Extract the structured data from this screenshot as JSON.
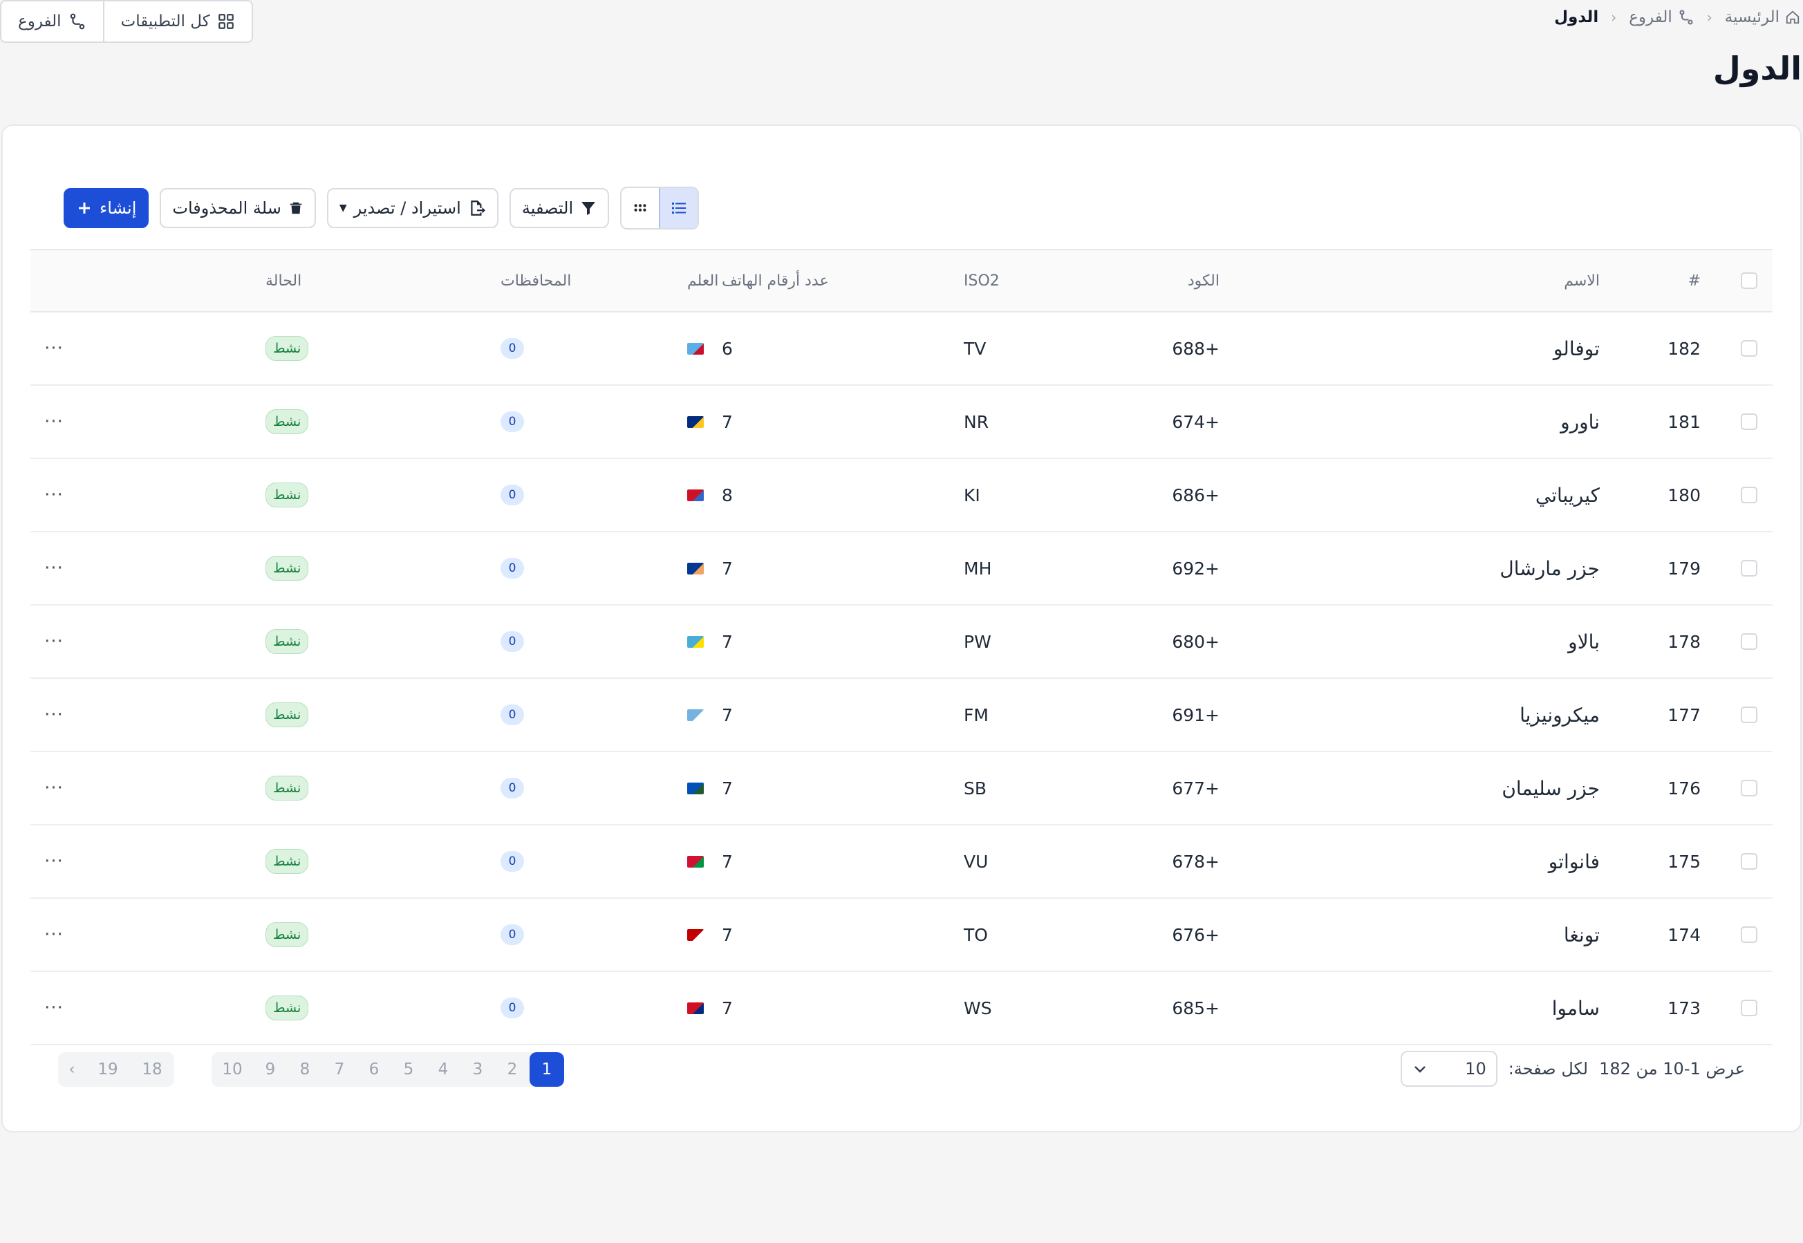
{
  "breadcrumb": {
    "home": "الرئيسية",
    "branches": "الفروع",
    "current": "الدول"
  },
  "top_actions": {
    "all_apps": "كل التطبيقات",
    "branches": "الفروع"
  },
  "page_title": "الدول",
  "toolbar": {
    "create": "إنشاء",
    "trash": "سلة المحذوفات",
    "import_export": "استيراد / تصدير",
    "filter": "التصفية"
  },
  "table": {
    "headers": {
      "index": "#",
      "name": "الاسم",
      "code": "الكود",
      "iso2": "ISO2",
      "phone_digits": "عدد أرقام الهاتف",
      "flag": "العلم",
      "governorates": "المحافظات",
      "status": "الحالة"
    },
    "rows": [
      {
        "id": "182",
        "name": "توفالو",
        "code": "688+",
        "iso2": "TV",
        "phone_digits": "6",
        "flag_colors": [
          "#5ab0e6",
          "#c8102e"
        ],
        "governorates": "0",
        "status": "نشط"
      },
      {
        "id": "181",
        "name": "ناورو",
        "code": "674+",
        "iso2": "NR",
        "phone_digits": "7",
        "flag_colors": [
          "#002b7f",
          "#ffc61e"
        ],
        "governorates": "0",
        "status": "نشط"
      },
      {
        "id": "180",
        "name": "كيريباتي",
        "code": "686+",
        "iso2": "KI",
        "phone_digits": "8",
        "flag_colors": [
          "#ce1126",
          "#3366cc"
        ],
        "governorates": "0",
        "status": "نشط"
      },
      {
        "id": "179",
        "name": "جزر مارشال",
        "code": "692+",
        "iso2": "MH",
        "phone_digits": "7",
        "flag_colors": [
          "#003893",
          "#f4a261"
        ],
        "governorates": "0",
        "status": "نشط"
      },
      {
        "id": "178",
        "name": "بالاو",
        "code": "680+",
        "iso2": "PW",
        "phone_digits": "7",
        "flag_colors": [
          "#4aadd6",
          "#ffde00"
        ],
        "governorates": "0",
        "status": "نشط"
      },
      {
        "id": "177",
        "name": "ميكرونيزيا",
        "code": "691+",
        "iso2": "FM",
        "phone_digits": "7",
        "flag_colors": [
          "#75b2dd",
          "#ffffff"
        ],
        "governorates": "0",
        "status": "نشط"
      },
      {
        "id": "176",
        "name": "جزر سليمان",
        "code": "677+",
        "iso2": "SB",
        "phone_digits": "7",
        "flag_colors": [
          "#0051ba",
          "#215b33"
        ],
        "governorates": "0",
        "status": "نشط"
      },
      {
        "id": "175",
        "name": "فانواتو",
        "code": "678+",
        "iso2": "VU",
        "phone_digits": "7",
        "flag_colors": [
          "#d21034",
          "#009543"
        ],
        "governorates": "0",
        "status": "نشط"
      },
      {
        "id": "174",
        "name": "تونغا",
        "code": "676+",
        "iso2": "TO",
        "phone_digits": "7",
        "flag_colors": [
          "#c10000",
          "#ffffff"
        ],
        "governorates": "0",
        "status": "نشط"
      },
      {
        "id": "173",
        "name": "ساموا",
        "code": "685+",
        "iso2": "WS",
        "phone_digits": "7",
        "flag_colors": [
          "#ce1126",
          "#002b7f"
        ],
        "governorates": "0",
        "status": "نشط"
      }
    ]
  },
  "footer": {
    "showing_prefix": "عرض",
    "range": "1-10",
    "of": "من",
    "total": "182",
    "per_page_label": "لكل صفحة:",
    "per_page_value": "10"
  },
  "pagination": {
    "pages": [
      "1",
      "2",
      "3",
      "4",
      "5",
      "6",
      "7",
      "8",
      "9",
      "10"
    ],
    "tail_pages": [
      "18",
      "19"
    ],
    "next": "‹",
    "current": "1"
  },
  "colors": {
    "primary": "#1d4ed8",
    "status_bg": "#dcf3df",
    "status_text": "#15803d"
  }
}
